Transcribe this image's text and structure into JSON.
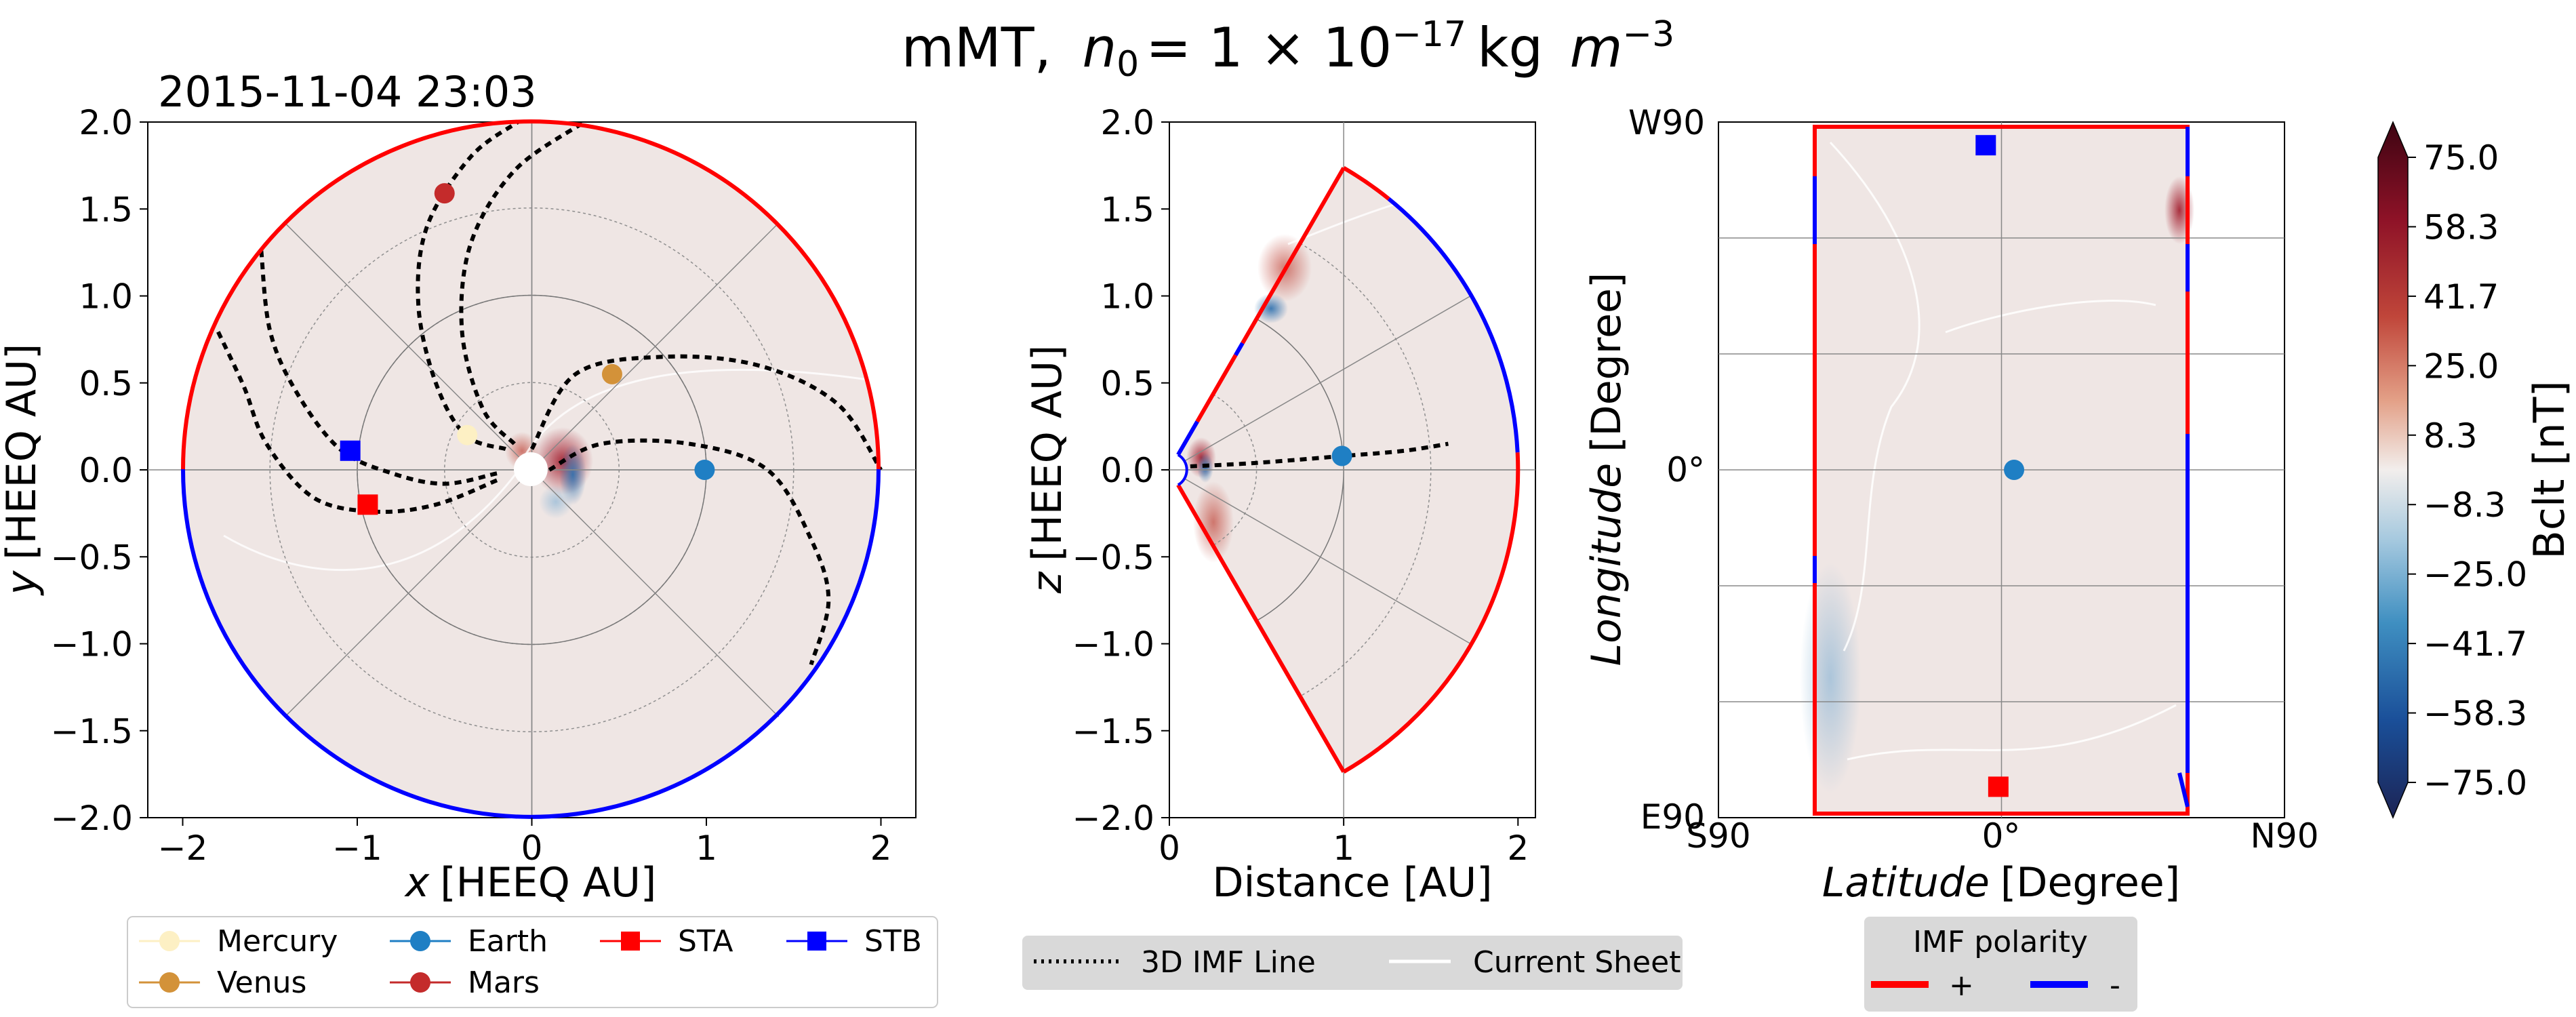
{
  "figure": {
    "title_plain": "mMT,",
    "title_n": "n",
    "title_sub": "0",
    "title_eq": "= 1 × 10",
    "title_exp": "−17",
    "title_unit": "kg",
    "title_m": "m",
    "title_m_exp": "−3",
    "timestamp": "2015-11-04 23:03"
  },
  "chart_data": [
    {
      "type": "scatter",
      "panel": "ecliptic-plane",
      "xlabel_var": "x",
      "xlabel_unit": "[HEEQ AU]",
      "ylabel_var": "y",
      "ylabel_unit": "[HEEQ AU]",
      "xlim": [
        -2.2,
        2.2
      ],
      "ylim": [
        -2.0,
        2.0
      ],
      "xticks": [
        -2,
        -1,
        0,
        1,
        2
      ],
      "yticks": [
        2.0,
        1.5,
        1.0,
        0.5,
        0.0,
        -0.5,
        -1.0,
        -1.5,
        -2.0
      ],
      "xtick_labels": [
        "−2",
        "−1",
        "0",
        "1",
        "2"
      ],
      "ytick_labels": [
        "2.0",
        "1.5",
        "1.0",
        "0.5",
        "0.0",
        "−0.5",
        "−1.0",
        "−1.5",
        "−2.0"
      ],
      "points": [
        {
          "name": "Mercury",
          "x": -0.37,
          "y": 0.2,
          "color": "#fdf0c4",
          "marker": "circle"
        },
        {
          "name": "Venus",
          "x": 0.46,
          "y": 0.55,
          "color": "#d39239",
          "marker": "circle"
        },
        {
          "name": "Earth",
          "x": 0.99,
          "y": 0.0,
          "color": "#1f7fc4",
          "marker": "circle"
        },
        {
          "name": "Mars",
          "x": -0.5,
          "y": 1.59,
          "color": "#c42b2b",
          "marker": "circle"
        },
        {
          "name": "STA",
          "x": -0.94,
          "y": -0.2,
          "color": "#ff0000",
          "marker": "square"
        },
        {
          "name": "STB",
          "x": -1.04,
          "y": 0.11,
          "color": "#0000ff",
          "marker": "square"
        }
      ],
      "field_lines": [
        [
          [
            -0.2,
            -0.06
          ],
          [
            -0.55,
            -0.2
          ],
          [
            -0.9,
            -0.24
          ],
          [
            -1.25,
            -0.16
          ],
          [
            -1.52,
            0.15
          ],
          [
            -1.65,
            0.48
          ],
          [
            -1.8,
            0.8
          ]
        ],
        [
          [
            -0.2,
            -0.02
          ],
          [
            -0.5,
            -0.08
          ],
          [
            -0.8,
            -0.02
          ],
          [
            -1.1,
            0.12
          ],
          [
            -1.35,
            0.45
          ],
          [
            -1.5,
            0.8
          ],
          [
            -1.55,
            1.26
          ]
        ],
        [
          [
            -0.15,
            0.12
          ],
          [
            -0.38,
            0.2
          ],
          [
            -0.55,
            0.5
          ],
          [
            -0.65,
            0.95
          ],
          [
            -0.6,
            1.4
          ],
          [
            -0.35,
            1.8
          ],
          [
            -0.08,
            2.0
          ]
        ],
        [
          [
            -0.1,
            0.15
          ],
          [
            -0.28,
            0.35
          ],
          [
            -0.4,
            0.8
          ],
          [
            -0.35,
            1.3
          ],
          [
            -0.1,
            1.72
          ],
          [
            0.3,
            2.0
          ]
        ],
        [
          [
            0.0,
            0.12
          ],
          [
            0.25,
            0.55
          ],
          [
            0.75,
            0.65
          ],
          [
            1.3,
            0.6
          ],
          [
            1.75,
            0.38
          ],
          [
            2.0,
            0.0
          ]
        ],
        [
          [
            0.1,
            0.0
          ],
          [
            0.4,
            0.15
          ],
          [
            0.9,
            0.15
          ],
          [
            1.35,
            0.0
          ],
          [
            1.6,
            -0.4
          ],
          [
            1.7,
            -0.75
          ],
          [
            1.6,
            -1.12
          ]
        ]
      ]
    },
    {
      "type": "scatter",
      "panel": "meridional-plane",
      "xlabel": "Distance [AU]",
      "ylabel_var": "z",
      "ylabel_unit": "[HEEQ AU]",
      "xlim": [
        0,
        2.1
      ],
      "ylim": [
        -2.0,
        2.0
      ],
      "xticks": [
        0,
        1,
        2
      ],
      "yticks": [
        2.0,
        1.5,
        1.0,
        0.5,
        0.0,
        -0.5,
        -1.0,
        -1.5,
        -2.0
      ],
      "xtick_labels": [
        "0",
        "1",
        "2"
      ],
      "ytick_labels": [
        "2.0",
        "1.5",
        "1.0",
        "0.5",
        "0.0",
        "−0.5",
        "−1.0",
        "−1.5",
        "−2.0"
      ],
      "points": [
        {
          "name": "Earth",
          "x": 0.99,
          "y": 0.08,
          "color": "#1f7fc4",
          "marker": "circle"
        }
      ],
      "field_line": [
        [
          0.12,
          0.02
        ],
        [
          0.5,
          0.04
        ],
        [
          1.0,
          0.08
        ],
        [
          1.35,
          0.11
        ],
        [
          1.6,
          0.15
        ]
      ]
    },
    {
      "type": "scatter",
      "panel": "source-surface",
      "xlabel_var": "Latitude",
      "xlabel_unit": "[Degree]",
      "ylabel_var": "Longitude",
      "ylabel_unit": "[Degree]",
      "xlim": [
        -90,
        90
      ],
      "ylim": [
        -90,
        90
      ],
      "xtick_labels": [
        "S90",
        "0°",
        "N90"
      ],
      "ytick_labels": [
        "W90",
        "0°",
        "E90"
      ],
      "points": [
        {
          "name": "Earth",
          "x": 4,
          "y": 0,
          "color": "#1f7fc4",
          "marker": "circle"
        },
        {
          "name": "STB",
          "x": -5,
          "y": 84,
          "color": "#0000ff",
          "marker": "square"
        },
        {
          "name": "STA",
          "x": -1,
          "y": -82,
          "color": "#ff0000",
          "marker": "square"
        }
      ]
    }
  ],
  "colorbar": {
    "label": "Bclt  [nT]",
    "range": [
      -75.0,
      75.0
    ],
    "tick_labels": [
      "75.0",
      "58.3",
      "41.7",
      "25.0",
      "8.3",
      "−8.3",
      "−25.0",
      "−41.7",
      "−58.3",
      "−75.0"
    ],
    "colors": [
      "#3d0412",
      "#8e1227",
      "#c0463a",
      "#e3a087",
      "#f2eeec",
      "#a6c9df",
      "#3f8fc1",
      "#1a4f99",
      "#1c2455"
    ]
  },
  "legends": {
    "bodies": [
      {
        "label": "Mercury",
        "color": "#fdf0c4",
        "marker": "circle"
      },
      {
        "label": "Earth",
        "color": "#1f7fc4",
        "marker": "circle"
      },
      {
        "label": "STA",
        "color": "#ff0000",
        "marker": "square"
      },
      {
        "label": "STB",
        "color": "#0000ff",
        "marker": "square"
      },
      {
        "label": "Venus",
        "color": "#d39239",
        "marker": "circle"
      },
      {
        "label": "Mars",
        "color": "#c42b2b",
        "marker": "circle"
      }
    ],
    "lines": [
      {
        "label": "3D IMF Line"
      },
      {
        "label": "Current Sheet"
      }
    ],
    "polarity": {
      "title": "IMF polarity",
      "plus_label": "+",
      "minus_label": "-",
      "plus_color": "#ff0000",
      "minus_color": "#0000ff"
    }
  },
  "colors": {
    "background_fill": "#efe6e4",
    "positive": "#ff0000",
    "negative": "#0000ff"
  }
}
